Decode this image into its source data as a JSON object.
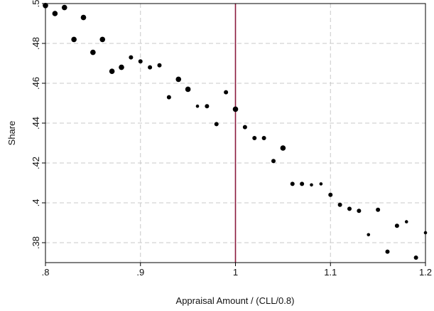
{
  "chart_data": {
    "type": "scatter",
    "title": "",
    "xlabel": "Appraisal Amount / (CLL/0.8)",
    "ylabel": "Share",
    "xlim": [
      0.8,
      1.2
    ],
    "ylim": [
      0.37,
      0.5
    ],
    "xticks": [
      0.8,
      0.9,
      1.0,
      1.1,
      1.2
    ],
    "xtick_labels": [
      ".8",
      ".9",
      "1",
      "1.1",
      "1.2"
    ],
    "yticks": [
      0.38,
      0.4,
      0.42,
      0.44,
      0.46,
      0.48,
      0.5
    ],
    "ytick_labels": [
      ".38",
      ".4",
      ".42",
      ".44",
      ".46",
      ".48",
      ".5"
    ],
    "grid": true,
    "reference_line": {
      "axis": "x",
      "value": 1.0,
      "color": "#8b1a3d"
    },
    "marker_color": "#000000",
    "points": [
      {
        "x": 0.8,
        "y": 0.499,
        "s": "large"
      },
      {
        "x": 0.81,
        "y": 0.495,
        "s": "large"
      },
      {
        "x": 0.82,
        "y": 0.498,
        "s": "large"
      },
      {
        "x": 0.83,
        "y": 0.482,
        "s": "large"
      },
      {
        "x": 0.84,
        "y": 0.493,
        "s": "large"
      },
      {
        "x": 0.85,
        "y": 0.4755,
        "s": "large"
      },
      {
        "x": 0.86,
        "y": 0.482,
        "s": "large"
      },
      {
        "x": 0.87,
        "y": 0.466,
        "s": "large"
      },
      {
        "x": 0.88,
        "y": 0.468,
        "s": "large"
      },
      {
        "x": 0.89,
        "y": 0.473,
        "s": "medium"
      },
      {
        "x": 0.9,
        "y": 0.471,
        "s": "medium"
      },
      {
        "x": 0.91,
        "y": 0.468,
        "s": "medium"
      },
      {
        "x": 0.92,
        "y": 0.469,
        "s": "medium"
      },
      {
        "x": 0.93,
        "y": 0.453,
        "s": "medium"
      },
      {
        "x": 0.94,
        "y": 0.462,
        "s": "large"
      },
      {
        "x": 0.95,
        "y": 0.457,
        "s": "large"
      },
      {
        "x": 0.96,
        "y": 0.4485,
        "s": "small"
      },
      {
        "x": 0.97,
        "y": 0.4485,
        "s": "medium"
      },
      {
        "x": 0.98,
        "y": 0.4395,
        "s": "medium"
      },
      {
        "x": 0.99,
        "y": 0.4555,
        "s": "medium"
      },
      {
        "x": 1.0,
        "y": 0.447,
        "s": "large"
      },
      {
        "x": 1.01,
        "y": 0.438,
        "s": "medium"
      },
      {
        "x": 1.02,
        "y": 0.4325,
        "s": "medium"
      },
      {
        "x": 1.03,
        "y": 0.4325,
        "s": "medium"
      },
      {
        "x": 1.04,
        "y": 0.421,
        "s": "medium"
      },
      {
        "x": 1.05,
        "y": 0.4275,
        "s": "large"
      },
      {
        "x": 1.06,
        "y": 0.4095,
        "s": "medium"
      },
      {
        "x": 1.07,
        "y": 0.4095,
        "s": "medium"
      },
      {
        "x": 1.08,
        "y": 0.409,
        "s": "small"
      },
      {
        "x": 1.09,
        "y": 0.4095,
        "s": "small"
      },
      {
        "x": 1.1,
        "y": 0.404,
        "s": "medium"
      },
      {
        "x": 1.11,
        "y": 0.399,
        "s": "medium"
      },
      {
        "x": 1.12,
        "y": 0.397,
        "s": "medium"
      },
      {
        "x": 1.13,
        "y": 0.396,
        "s": "medium"
      },
      {
        "x": 1.14,
        "y": 0.384,
        "s": "small"
      },
      {
        "x": 1.15,
        "y": 0.3965,
        "s": "medium"
      },
      {
        "x": 1.16,
        "y": 0.3755,
        "s": "medium"
      },
      {
        "x": 1.17,
        "y": 0.3885,
        "s": "medium"
      },
      {
        "x": 1.18,
        "y": 0.3905,
        "s": "small"
      },
      {
        "x": 1.19,
        "y": 0.3725,
        "s": "medium"
      },
      {
        "x": 1.2,
        "y": 0.385,
        "s": "small"
      }
    ]
  }
}
